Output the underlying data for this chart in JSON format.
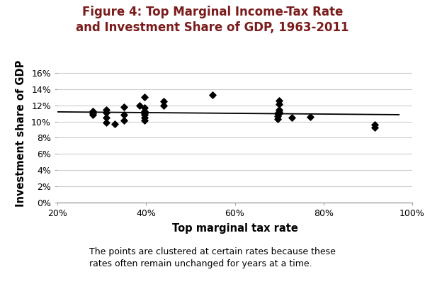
{
  "title": "Figure 4: Top Marginal Income-Tax Rate\nand Investment Share of GDP, 1963-2011",
  "xlabel": "Top marginal tax rate",
  "ylabel": "Investment share of GDP",
  "caption": "The points are clustered at certain rates because these\nrates often remain unchanged for years at a time.",
  "scatter_x": [
    0.28,
    0.28,
    0.28,
    0.31,
    0.31,
    0.31,
    0.31,
    0.33,
    0.35,
    0.35,
    0.35,
    0.386,
    0.396,
    0.396,
    0.396,
    0.396,
    0.396,
    0.396,
    0.396,
    0.44,
    0.44,
    0.55,
    0.696,
    0.696,
    0.696,
    0.7,
    0.7,
    0.7,
    0.7,
    0.7,
    0.728,
    0.77,
    0.916,
    0.916
  ],
  "scatter_y": [
    0.11,
    0.108,
    0.113,
    0.099,
    0.105,
    0.111,
    0.115,
    0.097,
    0.101,
    0.108,
    0.118,
    0.12,
    0.101,
    0.105,
    0.108,
    0.11,
    0.113,
    0.117,
    0.13,
    0.12,
    0.125,
    0.133,
    0.103,
    0.107,
    0.11,
    0.11,
    0.112,
    0.115,
    0.122,
    0.126,
    0.105,
    0.106,
    0.093,
    0.096
  ],
  "trendline_x": [
    0.2,
    0.97
  ],
  "trendline_y": [
    0.112,
    0.1085
  ],
  "xlim": [
    0.2,
    1.0
  ],
  "ylim": [
    0.0,
    0.17
  ],
  "xticks": [
    0.2,
    0.4,
    0.6,
    0.8,
    1.0
  ],
  "yticks": [
    0.0,
    0.02,
    0.04,
    0.06,
    0.08,
    0.1,
    0.12,
    0.14,
    0.16
  ],
  "title_color": "#7B1C1C",
  "marker_color": "#000000",
  "trendline_color": "#000000",
  "grid_color": "#cccccc",
  "background_color": "#ffffff",
  "title_fontsize": 12,
  "axis_label_fontsize": 10.5,
  "tick_fontsize": 9,
  "caption_fontsize": 9
}
